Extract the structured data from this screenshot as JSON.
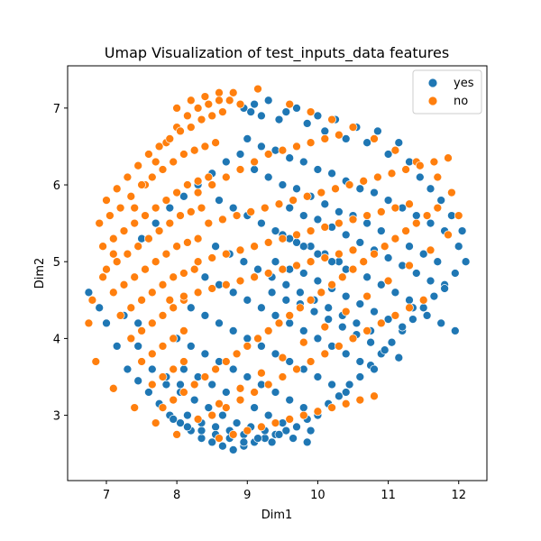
{
  "chart_data": {
    "type": "scatter",
    "title": "Umap Visualization of test_inputs_data features",
    "xlabel": "Dim1",
    "ylabel": "Dim2",
    "xlim": [
      6.45,
      12.4
    ],
    "ylim": [
      2.15,
      7.55
    ],
    "xticks": [
      7,
      8,
      9,
      10,
      11,
      12
    ],
    "yticks": [
      3,
      4,
      5,
      6,
      7
    ],
    "grid": false,
    "legend_position": "top-right",
    "series": [
      {
        "name": "yes",
        "color": "#1f77b4",
        "x": [
          8.95,
          9.05,
          9.1,
          9.2,
          9.3,
          9.45,
          9.55,
          9.7,
          9.85,
          10.0,
          10.1,
          10.25,
          10.4,
          10.55,
          10.7,
          10.85,
          11.0,
          11.15,
          11.3,
          11.45,
          11.6,
          11.75,
          11.9,
          12.05,
          12.1,
          11.95,
          11.8,
          11.65,
          11.5,
          11.35,
          11.2,
          11.05,
          10.9,
          10.75,
          10.6,
          10.45,
          10.3,
          10.15,
          10.0,
          9.85,
          9.7,
          9.55,
          9.4,
          9.25,
          9.1,
          8.95,
          8.8,
          8.65,
          8.5,
          8.35,
          8.2,
          8.05,
          7.9,
          7.75,
          7.6,
          7.45,
          7.3,
          7.15,
          7.0,
          6.9,
          6.75,
          9.0,
          9.2,
          9.4,
          9.6,
          9.8,
          10.0,
          10.2,
          10.4,
          10.6,
          10.8,
          11.0,
          11.2,
          11.4,
          11.6,
          11.8,
          12.0,
          9.1,
          9.3,
          9.5,
          9.7,
          9.9,
          10.1,
          10.3,
          10.5,
          10.7,
          10.9,
          11.1,
          11.3,
          11.5,
          11.7,
          8.9,
          8.7,
          8.5,
          8.3,
          8.1,
          7.9,
          7.7,
          7.5,
          7.3,
          9.6,
          9.8,
          10.0,
          10.2,
          10.4,
          10.6,
          10.8,
          11.0,
          11.2,
          11.4,
          11.6,
          11.8,
          9.5,
          9.7,
          9.9,
          10.1,
          10.3,
          10.5,
          10.7,
          10.9,
          11.1,
          11.3,
          11.5,
          9.4,
          9.6,
          9.8,
          10.0,
          10.2,
          10.4,
          10.6,
          10.8,
          11.0,
          11.2,
          9.35,
          9.55,
          9.75,
          9.95,
          10.15,
          10.35,
          10.55,
          10.75,
          10.95,
          11.15,
          11.35,
          11.55,
          11.75,
          11.95,
          8.6,
          8.8,
          9.0,
          9.2,
          9.4,
          9.6,
          9.8,
          10.0,
          10.2,
          10.4,
          8.55,
          8.75,
          8.95,
          9.15,
          9.35,
          9.55,
          9.75,
          9.95,
          10.15,
          10.35,
          10.55,
          10.75,
          8.4,
          8.6,
          8.8,
          9.0,
          9.2,
          9.4,
          9.6,
          9.8,
          10.0,
          10.2,
          10.4,
          10.6,
          10.8,
          8.2,
          8.4,
          8.6,
          8.8,
          9.0,
          9.2,
          9.4,
          9.6,
          9.8,
          10.0,
          10.2,
          10.4,
          8.0,
          8.2,
          8.4,
          8.6,
          8.8,
          9.0,
          9.2,
          9.4,
          9.6,
          9.8,
          10.0,
          8.1,
          8.3,
          8.5,
          8.7,
          8.9,
          9.1,
          9.3,
          9.5,
          9.7,
          9.9,
          8.25,
          8.45,
          8.65,
          8.85,
          9.05,
          9.25,
          9.45,
          9.65,
          9.85,
          8.15,
          8.35,
          8.55,
          8.75,
          8.95,
          9.15,
          9.35,
          7.95,
          8.15,
          8.35,
          8.55,
          8.75,
          8.95,
          7.85,
          8.05,
          8.25,
          8.45,
          7.65,
          7.85,
          8.05,
          7.45,
          7.65,
          7.25,
          7.45
        ],
        "y": [
          7.0,
          6.95,
          7.05,
          6.9,
          7.1,
          6.85,
          6.95,
          7.0,
          6.8,
          6.9,
          6.7,
          6.85,
          6.6,
          6.75,
          6.55,
          6.7,
          6.4,
          6.55,
          6.3,
          6.1,
          5.95,
          5.8,
          5.6,
          5.4,
          5.0,
          4.85,
          4.7,
          4.55,
          4.4,
          4.25,
          4.1,
          3.95,
          3.8,
          3.65,
          3.5,
          3.4,
          3.25,
          3.15,
          3.05,
          2.95,
          2.85,
          2.8,
          2.75,
          2.7,
          2.65,
          2.6,
          2.55,
          2.6,
          2.65,
          2.7,
          2.8,
          2.9,
          3.0,
          3.15,
          3.3,
          3.45,
          3.6,
          3.9,
          4.2,
          4.4,
          4.6,
          6.6,
          6.5,
          6.45,
          6.35,
          6.3,
          6.2,
          6.15,
          6.05,
          5.95,
          5.9,
          5.8,
          5.7,
          5.6,
          5.5,
          5.4,
          5.2,
          6.2,
          6.1,
          6.0,
          5.95,
          5.85,
          5.75,
          5.65,
          5.6,
          5.5,
          5.4,
          5.3,
          5.2,
          5.1,
          5.0,
          6.4,
          6.3,
          6.15,
          6.0,
          5.85,
          5.7,
          5.5,
          5.3,
          5.1,
          5.7,
          5.6,
          5.55,
          5.45,
          5.35,
          5.25,
          5.15,
          5.05,
          4.95,
          4.85,
          4.75,
          4.65,
          5.35,
          5.25,
          5.2,
          5.1,
          5.0,
          4.9,
          4.8,
          4.7,
          4.6,
          4.5,
          4.4,
          5.0,
          4.9,
          4.85,
          4.75,
          4.65,
          4.55,
          4.45,
          4.35,
          4.25,
          4.15,
          4.6,
          4.5,
          4.45,
          4.35,
          4.25,
          4.15,
          4.05,
          3.95,
          3.85,
          3.75,
          4.4,
          4.3,
          4.2,
          4.1,
          5.8,
          5.7,
          5.6,
          5.5,
          5.4,
          5.3,
          5.2,
          5.1,
          5.0,
          4.9,
          5.2,
          5.1,
          5.0,
          4.9,
          4.8,
          4.7,
          4.6,
          4.5,
          4.4,
          4.3,
          4.2,
          4.1,
          4.8,
          4.7,
          4.6,
          4.5,
          4.4,
          4.3,
          4.2,
          4.1,
          4.0,
          3.9,
          3.8,
          3.7,
          3.6,
          4.4,
          4.3,
          4.2,
          4.1,
          4.0,
          3.9,
          3.8,
          3.7,
          3.6,
          3.5,
          3.4,
          3.3,
          4.0,
          3.9,
          3.8,
          3.7,
          3.6,
          3.5,
          3.4,
          3.3,
          3.2,
          3.1,
          3.0,
          3.6,
          3.5,
          3.4,
          3.3,
          3.2,
          3.1,
          3.0,
          2.9,
          2.85,
          2.8,
          3.2,
          3.1,
          3.0,
          2.9,
          2.85,
          2.8,
          2.75,
          2.7,
          2.65,
          3.0,
          2.9,
          2.85,
          2.8,
          2.75,
          2.7,
          2.65,
          2.95,
          2.85,
          2.8,
          2.75,
          2.7,
          2.65,
          3.4,
          3.3,
          3.2,
          3.1,
          3.6,
          3.5,
          3.4,
          3.9,
          3.8,
          4.3,
          4.2
        ]
      },
      {
        "name": "no",
        "color": "#ff7f0e",
        "x": [
          8.0,
          8.2,
          8.4,
          8.6,
          8.8,
          9.15,
          9.6,
          9.9,
          10.2,
          10.5,
          10.8,
          11.1,
          11.4,
          11.7,
          11.9,
          12.0,
          11.85,
          11.6,
          11.3,
          11.0,
          10.7,
          10.4,
          10.1,
          9.8,
          9.5,
          9.2,
          8.9,
          8.6,
          8.3,
          8.0,
          7.7,
          7.4,
          7.1,
          6.85,
          6.75,
          6.8,
          6.95,
          7.1,
          7.25,
          7.4,
          7.55,
          7.7,
          7.85,
          8.0,
          8.15,
          8.3,
          8.45,
          8.6,
          8.75,
          8.9,
          7.0,
          7.15,
          7.3,
          7.45,
          7.6,
          7.75,
          7.9,
          8.05,
          8.2,
          8.35,
          8.5,
          8.65,
          6.9,
          7.05,
          7.2,
          7.35,
          7.5,
          7.65,
          7.8,
          7.95,
          8.1,
          8.25,
          8.4,
          8.55,
          6.95,
          7.1,
          7.25,
          7.4,
          7.55,
          7.7,
          7.85,
          8.0,
          8.15,
          8.3,
          8.45,
          7.0,
          7.15,
          7.3,
          7.45,
          7.6,
          7.75,
          7.9,
          8.05,
          8.2,
          8.35,
          7.1,
          7.25,
          7.4,
          7.55,
          7.7,
          7.85,
          8.0,
          8.15,
          8.3,
          7.2,
          7.35,
          7.5,
          7.65,
          7.8,
          7.95,
          8.1,
          8.25,
          7.35,
          7.5,
          7.65,
          7.8,
          7.95,
          8.1,
          7.5,
          7.65,
          7.8,
          7.95,
          8.1,
          7.65,
          7.8,
          7.95,
          8.1,
          7.8,
          7.95,
          8.1,
          8.25,
          8.4,
          8.55,
          8.7,
          8.85,
          9.0,
          9.15,
          9.3,
          9.45,
          9.6,
          9.75,
          9.9,
          10.05,
          10.2,
          10.35,
          10.5,
          10.65,
          10.8,
          10.95,
          11.1,
          11.25,
          11.4,
          11.55,
          11.7,
          8.5,
          8.7,
          8.9,
          9.1,
          9.3,
          9.5,
          9.7,
          9.9,
          10.1,
          10.3,
          10.5,
          10.7,
          10.9,
          11.1,
          11.3,
          11.5,
          8.6,
          8.8,
          9.0,
          9.2,
          9.4,
          9.6,
          9.8,
          10.0,
          10.2,
          10.4,
          10.6,
          10.8,
          8.3,
          8.5,
          8.7,
          8.9,
          9.1,
          9.3,
          9.5,
          9.7,
          9.9,
          10.1,
          10.3,
          8.45,
          8.65,
          8.85,
          9.05,
          9.25,
          9.45,
          9.65,
          9.85,
          10.05,
          10.25,
          10.45,
          10.65,
          10.85,
          11.05,
          11.25,
          11.45,
          11.65,
          11.85,
          8.3,
          8.5,
          8.7,
          8.9,
          9.1,
          9.3,
          9.5,
          9.7,
          9.9,
          10.1,
          10.3,
          10.5,
          10.7,
          10.9,
          11.1,
          11.3,
          7.9,
          8.1,
          8.3,
          8.5,
          8.7,
          8.9,
          9.1,
          9.3,
          9.5,
          9.7,
          9.9,
          10.1,
          10.3,
          10.5
        ],
        "y": [
          7.0,
          7.1,
          7.15,
          7.2,
          7.2,
          7.25,
          7.05,
          6.95,
          6.85,
          6.75,
          6.6,
          6.45,
          6.3,
          6.1,
          5.9,
          5.6,
          5.35,
          5.15,
          4.95,
          4.75,
          4.55,
          4.35,
          4.15,
          3.95,
          3.75,
          3.55,
          3.35,
          3.15,
          2.95,
          2.75,
          2.9,
          3.1,
          3.35,
          3.7,
          4.2,
          4.5,
          4.8,
          5.1,
          5.4,
          5.7,
          6.0,
          6.3,
          6.55,
          6.75,
          6.9,
          7.0,
          7.05,
          7.1,
          7.1,
          7.05,
          5.8,
          5.95,
          6.1,
          6.25,
          6.4,
          6.5,
          6.6,
          6.7,
          6.75,
          6.85,
          6.9,
          6.95,
          5.5,
          5.6,
          5.7,
          5.85,
          6.0,
          6.1,
          6.2,
          6.3,
          6.4,
          6.45,
          6.5,
          6.55,
          5.2,
          5.3,
          5.4,
          5.5,
          5.6,
          5.7,
          5.8,
          5.9,
          6.0,
          6.05,
          6.1,
          4.9,
          5.0,
          5.1,
          5.2,
          5.3,
          5.4,
          5.5,
          5.6,
          5.65,
          5.7,
          4.6,
          4.7,
          4.8,
          4.9,
          5.0,
          5.1,
          5.2,
          5.25,
          5.3,
          4.3,
          4.4,
          4.5,
          4.6,
          4.7,
          4.8,
          4.85,
          4.9,
          4.0,
          4.1,
          4.2,
          4.3,
          4.4,
          4.5,
          3.7,
          3.8,
          3.9,
          4.0,
          4.1,
          3.4,
          3.5,
          3.6,
          3.7,
          3.1,
          3.2,
          3.3,
          3.4,
          3.5,
          3.6,
          3.7,
          3.8,
          3.9,
          4.0,
          4.1,
          4.2,
          4.3,
          4.4,
          4.5,
          4.6,
          4.7,
          4.8,
          4.9,
          5.0,
          5.1,
          5.2,
          5.3,
          5.4,
          5.5,
          5.6,
          5.7,
          3.0,
          3.1,
          3.2,
          3.3,
          3.4,
          3.5,
          3.6,
          3.7,
          3.8,
          3.9,
          4.0,
          4.1,
          4.2,
          4.3,
          4.4,
          4.5,
          2.7,
          2.75,
          2.8,
          2.85,
          2.9,
          2.95,
          3.0,
          3.05,
          3.1,
          3.15,
          3.2,
          3.25,
          5.9,
          6.0,
          6.1,
          6.2,
          6.3,
          6.4,
          6.45,
          6.5,
          6.55,
          6.6,
          6.65,
          5.5,
          5.55,
          5.6,
          5.65,
          5.7,
          5.75,
          5.8,
          5.85,
          5.9,
          5.95,
          6.0,
          6.05,
          6.1,
          6.15,
          6.2,
          6.25,
          6.3,
          6.35,
          5.0,
          5.05,
          5.1,
          5.15,
          5.2,
          5.25,
          5.3,
          5.35,
          5.4,
          5.45,
          5.5,
          5.55,
          5.6,
          5.65,
          5.7,
          5.75,
          4.5,
          4.55,
          4.6,
          4.65,
          4.7,
          4.75,
          4.8,
          4.85,
          4.9,
          4.95,
          5.0,
          5.05,
          5.1,
          5.15
        ]
      }
    ]
  }
}
